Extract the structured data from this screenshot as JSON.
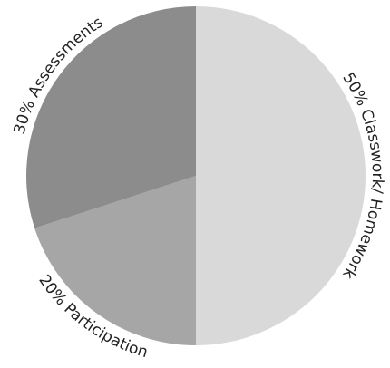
{
  "chart_data": {
    "type": "pie",
    "title": "",
    "legend": "none",
    "start_angle_deg": -90,
    "direction": "clockwise",
    "slices": [
      {
        "label": "50% Classwork/ Homework",
        "value": 50,
        "color": "#d9d9d9"
      },
      {
        "label": "20% Participation",
        "value": 20,
        "color": "#a6a6a6"
      },
      {
        "label": "30% Assessments",
        "value": 30,
        "color": "#8c8c8c"
      }
    ]
  }
}
